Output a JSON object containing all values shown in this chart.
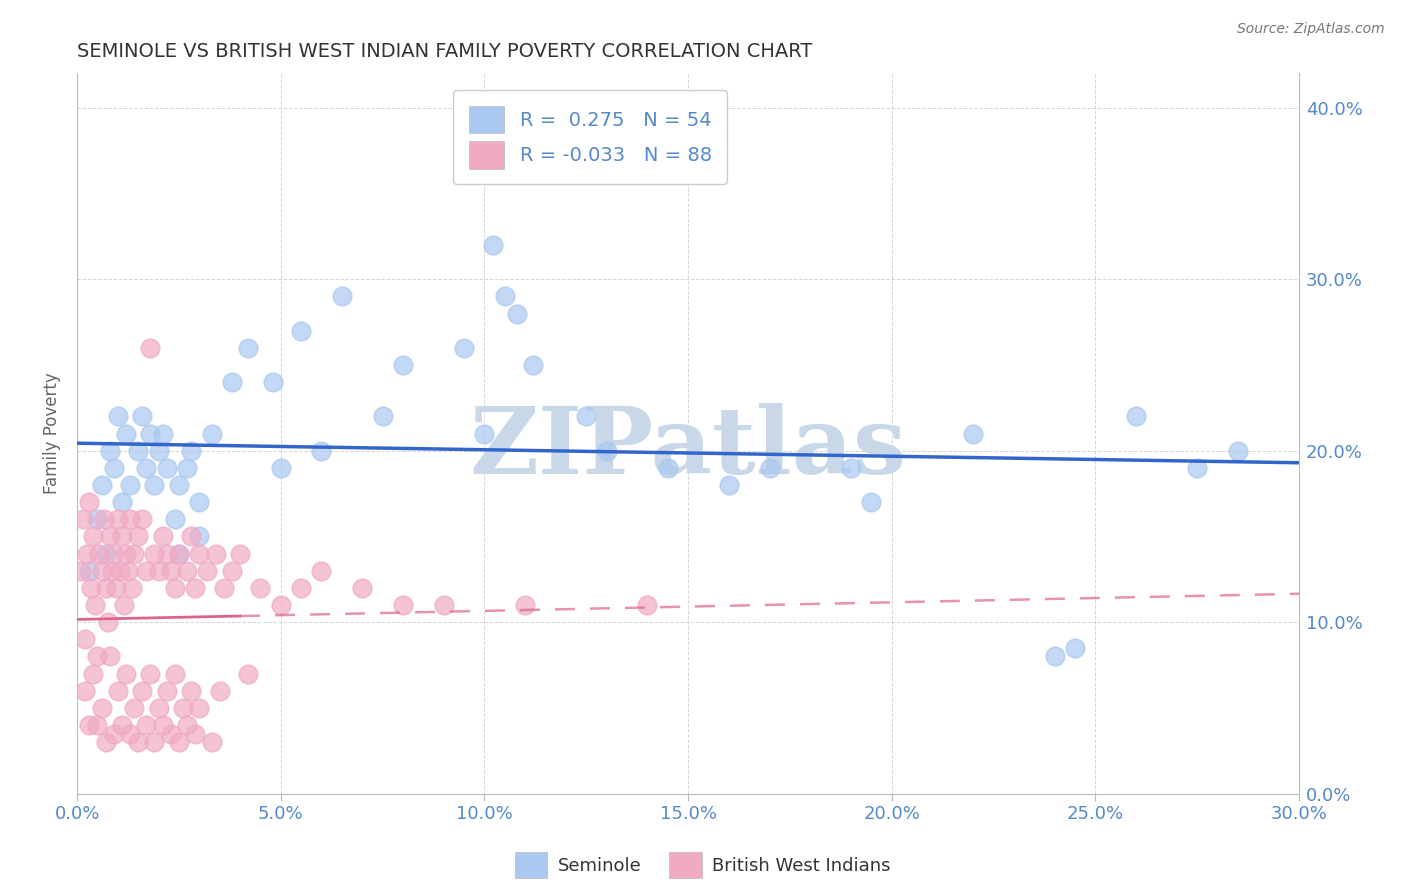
{
  "title": "SEMINOLE VS BRITISH WEST INDIAN FAMILY POVERTY CORRELATION CHART",
  "source": "Source: ZipAtlas.com",
  "xlim": [
    0,
    30
  ],
  "ylim": [
    0,
    42
  ],
  "ylabel": "Family Poverty",
  "seminole_R": 0.275,
  "seminole_N": 54,
  "bwi_R": -0.033,
  "bwi_N": 88,
  "seminole_color": "#aac8f0",
  "bwi_color": "#f0aac4",
  "seminole_line_color": "#3366cc",
  "bwi_line_color": "#dd6688",
  "watermark": "ZIPatlas",
  "watermark_color": "#c8d8e8",
  "legend_label_seminole": "Seminole",
  "legend_label_bwi": "British West Indians",
  "background_color": "#ffffff",
  "grid_color": "#bbbbbb",
  "title_color": "#333333",
  "axis_label_color": "#5588cc",
  "sem_x": [
    0.3,
    0.5,
    0.6,
    0.7,
    0.8,
    0.9,
    1.0,
    1.1,
    1.2,
    1.3,
    1.5,
    1.6,
    1.7,
    1.8,
    1.9,
    2.0,
    2.1,
    2.2,
    2.4,
    2.5,
    2.7,
    2.8,
    3.0,
    3.3,
    3.8,
    4.2,
    4.8,
    5.5,
    6.5,
    8.0,
    9.5,
    10.2,
    10.5,
    10.8,
    11.2,
    12.5,
    14.5,
    16.0,
    19.0,
    19.5,
    24.0,
    24.5,
    27.5,
    28.5,
    2.5,
    3.0,
    5.0,
    6.0,
    7.5,
    10.0,
    13.0,
    17.0,
    22.0,
    26.0
  ],
  "sem_y": [
    13.0,
    16.0,
    18.0,
    14.0,
    20.0,
    19.0,
    22.0,
    17.0,
    21.0,
    18.0,
    20.0,
    22.0,
    19.0,
    21.0,
    18.0,
    20.0,
    21.0,
    19.0,
    16.0,
    18.0,
    19.0,
    20.0,
    17.0,
    21.0,
    24.0,
    26.0,
    24.0,
    27.0,
    29.0,
    25.0,
    26.0,
    32.0,
    29.0,
    28.0,
    25.0,
    22.0,
    19.0,
    18.0,
    19.0,
    17.0,
    8.0,
    8.5,
    19.0,
    20.0,
    14.0,
    15.0,
    19.0,
    20.0,
    22.0,
    21.0,
    20.0,
    19.0,
    21.0,
    22.0
  ],
  "bwi_x": [
    0.1,
    0.15,
    0.2,
    0.25,
    0.3,
    0.35,
    0.4,
    0.45,
    0.5,
    0.55,
    0.6,
    0.65,
    0.7,
    0.75,
    0.8,
    0.85,
    0.9,
    0.95,
    1.0,
    1.05,
    1.1,
    1.15,
    1.2,
    1.25,
    1.3,
    1.35,
    1.4,
    1.5,
    1.6,
    1.7,
    1.8,
    1.9,
    2.0,
    2.1,
    2.2,
    2.3,
    2.4,
    2.5,
    2.7,
    2.8,
    2.9,
    3.0,
    3.2,
    3.4,
    3.6,
    3.8,
    4.0,
    4.5,
    5.0,
    5.5,
    6.0,
    7.0,
    8.0,
    9.0,
    11.0,
    14.0,
    0.2,
    0.4,
    0.6,
    0.8,
    1.0,
    1.2,
    1.4,
    1.6,
    1.8,
    2.0,
    2.2,
    2.4,
    2.6,
    2.8,
    3.0,
    3.5,
    4.2,
    0.3,
    0.5,
    0.7,
    0.9,
    1.1,
    1.3,
    1.5,
    1.7,
    1.9,
    2.1,
    2.3,
    2.5,
    2.7,
    2.9,
    3.3
  ],
  "bwi_y": [
    13.0,
    16.0,
    9.0,
    14.0,
    17.0,
    12.0,
    15.0,
    11.0,
    8.0,
    14.0,
    13.0,
    16.0,
    12.0,
    10.0,
    15.0,
    13.0,
    14.0,
    12.0,
    16.0,
    13.0,
    15.0,
    11.0,
    14.0,
    13.0,
    16.0,
    12.0,
    14.0,
    15.0,
    16.0,
    13.0,
    26.0,
    14.0,
    13.0,
    15.0,
    14.0,
    13.0,
    12.0,
    14.0,
    13.0,
    15.0,
    12.0,
    14.0,
    13.0,
    14.0,
    12.0,
    13.0,
    14.0,
    12.0,
    11.0,
    12.0,
    13.0,
    12.0,
    11.0,
    11.0,
    11.0,
    11.0,
    6.0,
    7.0,
    5.0,
    8.0,
    6.0,
    7.0,
    5.0,
    6.0,
    7.0,
    5.0,
    6.0,
    7.0,
    5.0,
    6.0,
    5.0,
    6.0,
    7.0,
    4.0,
    4.0,
    3.0,
    3.5,
    4.0,
    3.5,
    3.0,
    4.0,
    3.0,
    4.0,
    3.5,
    3.0,
    4.0,
    3.5,
    3.0
  ]
}
